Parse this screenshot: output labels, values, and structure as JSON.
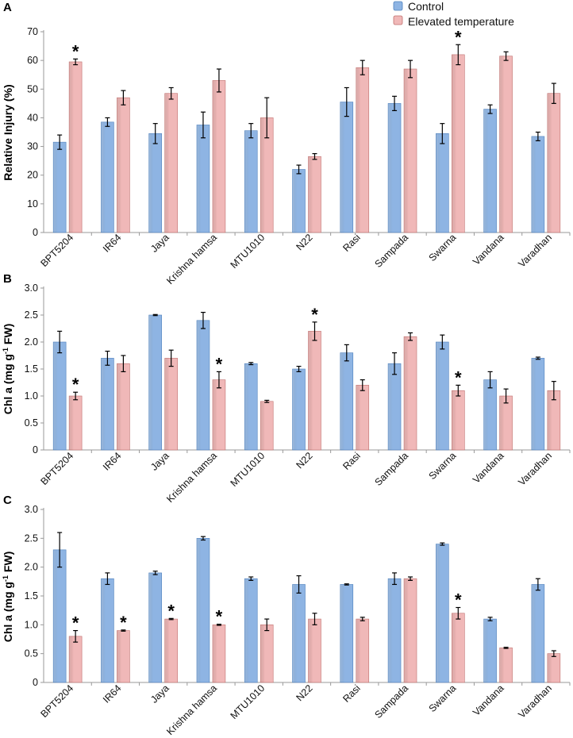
{
  "legend": {
    "control_label": "Control",
    "elevated_label": "Elevated temperature"
  },
  "colors": {
    "control": "#8eb4e3",
    "control_edge": "#4f81bd",
    "elevated": "#f0b8b8",
    "elevated_edge": "#c0706e",
    "axis": "#999999",
    "text": "#111111"
  },
  "chart_data": [
    {
      "type": "bar",
      "panel": "A",
      "title": "",
      "ylabel": "Relative Injury (%)",
      "ylabel_parts": [
        "Relative Injury (%)"
      ],
      "xlabel": "",
      "ylim": [
        0,
        70
      ],
      "yticks": [
        "0",
        "10",
        "20",
        "30",
        "40",
        "50",
        "60",
        "70"
      ],
      "ytick_values": [
        0,
        10,
        20,
        30,
        40,
        50,
        60,
        70
      ],
      "categories": [
        "BPT5204",
        "IR64",
        "Jaya",
        "Krishna hamsa",
        "MTU1010",
        "N22",
        "Rasi",
        "Sampada",
        "Swarna",
        "Vandana",
        "Varadhan"
      ],
      "series": [
        {
          "name": "Control",
          "values": [
            31.5,
            38.5,
            34.5,
            37.5,
            35.5,
            22.0,
            45.5,
            45.0,
            34.5,
            43.0,
            33.5
          ],
          "errors": [
            2.5,
            1.5,
            3.5,
            4.5,
            2.5,
            1.5,
            5.0,
            2.5,
            3.5,
            1.5,
            1.5
          ]
        },
        {
          "name": "Elevated temperature",
          "values": [
            59.5,
            47.0,
            48.5,
            53.0,
            40.0,
            26.5,
            57.5,
            57.0,
            62.0,
            61.5,
            48.5
          ],
          "errors": [
            1.0,
            2.5,
            2.0,
            4.0,
            7.0,
            1.0,
            2.5,
            3.0,
            3.5,
            1.5,
            3.5
          ]
        }
      ],
      "significance": [
        {
          "category": "BPT5204",
          "series": "Elevated temperature",
          "mark": "*"
        },
        {
          "category": "Swarna",
          "series": "Elevated temperature",
          "mark": "*"
        }
      ]
    },
    {
      "type": "bar",
      "panel": "B",
      "title": "",
      "ylabel": "Chl a (mg g-1 FW)",
      "ylabel_parts": [
        "Chl a (mg g",
        "-1",
        " FW)"
      ],
      "xlabel": "",
      "ylim": [
        0,
        3.0
      ],
      "yticks": [
        "0",
        "0.5",
        "1.0",
        "1.5",
        "2.0",
        "2.5",
        "3.0"
      ],
      "ytick_values": [
        0,
        0.5,
        1.0,
        1.5,
        2.0,
        2.5,
        3.0
      ],
      "categories": [
        "BPT5204",
        "IR64",
        "Jaya",
        "Krishna hamsa",
        "MTU1010",
        "N22",
        "Rasi",
        "Sampada",
        "Swarna",
        "Vandana",
        "Varadhan"
      ],
      "series": [
        {
          "name": "Control",
          "values": [
            2.0,
            1.7,
            2.5,
            2.4,
            1.6,
            1.5,
            1.8,
            1.6,
            2.0,
            1.3,
            1.7
          ],
          "errors": [
            0.2,
            0.13,
            0.01,
            0.15,
            0.02,
            0.05,
            0.15,
            0.2,
            0.13,
            0.15,
            0.02
          ]
        },
        {
          "name": "Elevated temperature",
          "values": [
            1.0,
            1.6,
            1.7,
            1.3,
            0.9,
            2.2,
            1.2,
            2.1,
            1.1,
            1.0,
            1.1
          ],
          "errors": [
            0.07,
            0.15,
            0.15,
            0.15,
            0.02,
            0.17,
            0.1,
            0.07,
            0.1,
            0.13,
            0.17
          ]
        }
      ],
      "significance": [
        {
          "category": "BPT5204",
          "series": "Elevated temperature",
          "mark": "*"
        },
        {
          "category": "Krishna hamsa",
          "series": "Elevated temperature",
          "mark": "*"
        },
        {
          "category": "N22",
          "series": "Elevated temperature",
          "mark": "*"
        },
        {
          "category": "Swarna",
          "series": "Elevated temperature",
          "mark": "*"
        }
      ]
    },
    {
      "type": "bar",
      "panel": "C",
      "title": "",
      "ylabel": "Chl a (mg g-1 FW)",
      "ylabel_parts": [
        "Chl a (mg g",
        "-1",
        " FW)"
      ],
      "xlabel": "",
      "ylim": [
        0,
        3.0
      ],
      "yticks": [
        "0",
        "0.5",
        "1.0",
        "1.5",
        "2.0",
        "2.5",
        "3.0"
      ],
      "ytick_values": [
        0,
        0.5,
        1.0,
        1.5,
        2.0,
        2.5,
        3.0
      ],
      "categories": [
        "BPT5204",
        "IR64",
        "Jaya",
        "Krishna hamsa",
        "MTU1010",
        "N22",
        "Rasi",
        "Sampada",
        "Swarna",
        "Vandana",
        "Varadhan"
      ],
      "series": [
        {
          "name": "Control",
          "values": [
            2.3,
            1.8,
            1.9,
            2.5,
            1.8,
            1.7,
            1.7,
            1.8,
            2.4,
            1.1,
            1.7
          ],
          "errors": [
            0.3,
            0.1,
            0.03,
            0.03,
            0.03,
            0.15,
            0.01,
            0.1,
            0.02,
            0.03,
            0.1
          ]
        },
        {
          "name": "Elevated temperature",
          "values": [
            0.8,
            0.9,
            1.1,
            1.0,
            1.0,
            1.1,
            1.1,
            1.8,
            1.2,
            0.6,
            0.5
          ],
          "errors": [
            0.1,
            0.01,
            0.01,
            0.01,
            0.1,
            0.1,
            0.03,
            0.03,
            0.1,
            0.01,
            0.05
          ]
        }
      ],
      "significance": [
        {
          "category": "BPT5204",
          "series": "Elevated temperature",
          "mark": "*"
        },
        {
          "category": "IR64",
          "series": "Elevated temperature",
          "mark": "*"
        },
        {
          "category": "Jaya",
          "series": "Elevated temperature",
          "mark": "*"
        },
        {
          "category": "Krishna hamsa",
          "series": "Elevated temperature",
          "mark": "*"
        },
        {
          "category": "Swarna",
          "series": "Elevated temperature",
          "mark": "*"
        }
      ]
    }
  ]
}
